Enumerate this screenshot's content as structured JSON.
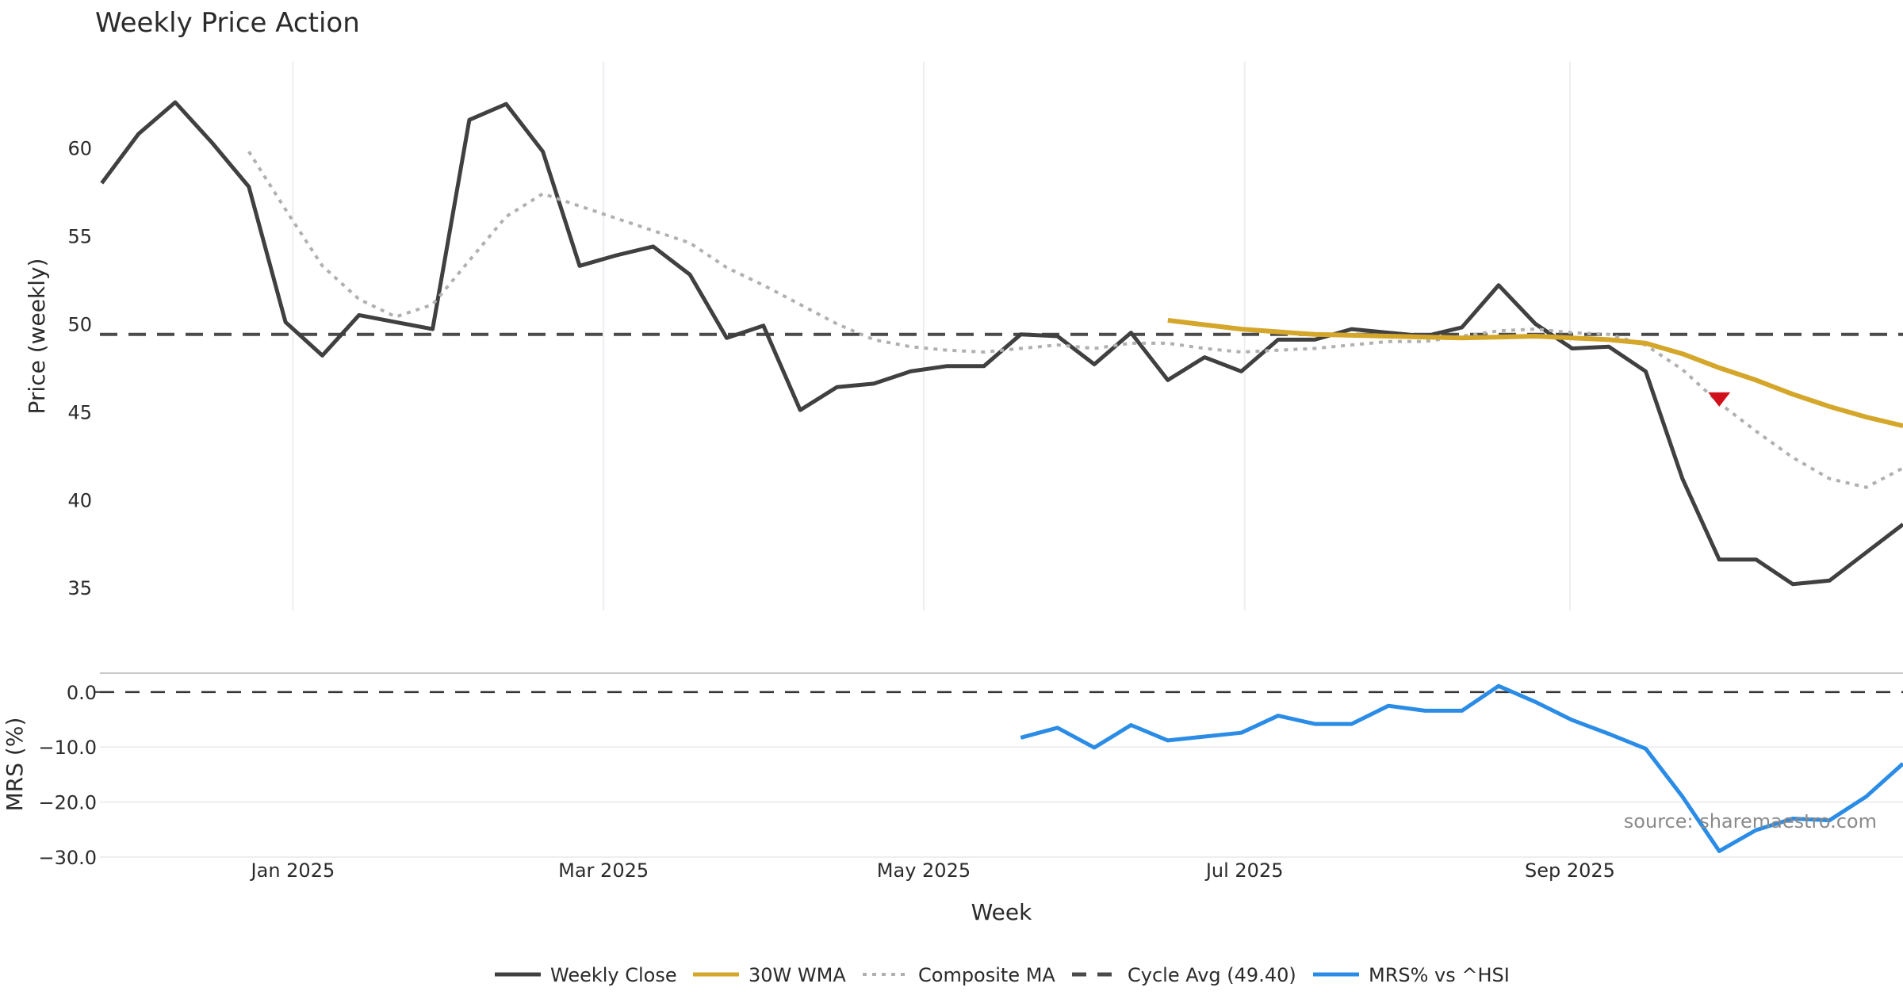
{
  "chart_data": {
    "type": "line",
    "title": "Weekly Price Action",
    "xlabel": "Week",
    "source": "source: sharemaestro.com",
    "x_ticks": [
      {
        "label": "Jan 2025",
        "index": 5.2
      },
      {
        "label": "Mar 2025",
        "index": 13.65
      },
      {
        "label": "May 2025",
        "index": 22.36
      },
      {
        "label": "Jul 2025",
        "index": 31.09
      },
      {
        "label": "Sep 2025",
        "index": 39.94
      }
    ],
    "x_range": [
      -0.05,
      49.0
    ],
    "price_panel": {
      "ylabel": "Price (weekly)",
      "ylim": [
        33.7,
        64.9
      ],
      "yticks": [
        {
          "value": 60,
          "label": "60"
        },
        {
          "value": 55,
          "label": "55"
        },
        {
          "value": 50,
          "label": "50"
        },
        {
          "value": 45,
          "label": "45"
        },
        {
          "value": 40,
          "label": "40"
        },
        {
          "value": 35,
          "label": "35"
        }
      ],
      "grid": "x",
      "series": [
        {
          "name": "Weekly Close",
          "color": "#404040",
          "style": "solid",
          "start_index": 0,
          "values": [
            58.0,
            60.8,
            62.6,
            60.3,
            57.8,
            50.1,
            48.2,
            50.5,
            50.1,
            49.7,
            61.6,
            62.5,
            59.8,
            53.3,
            53.9,
            54.4,
            52.8,
            49.2,
            49.9,
            45.1,
            46.4,
            46.6,
            47.3,
            47.6,
            47.6,
            49.4,
            49.3,
            47.7,
            49.5,
            46.8,
            48.1,
            47.3,
            49.1,
            49.1,
            49.7,
            49.5,
            49.3,
            49.8,
            52.2,
            50.0,
            48.6,
            48.7,
            47.3,
            41.2,
            36.6,
            36.6,
            35.2,
            35.4,
            37.0,
            38.6
          ]
        },
        {
          "name": "30W WMA",
          "color": "#d4a62a",
          "style": "solid",
          "start_index": 29,
          "values": [
            50.2,
            49.95,
            49.7,
            49.55,
            49.4,
            49.35,
            49.3,
            49.25,
            49.2,
            49.25,
            49.3,
            49.2,
            49.1,
            48.9,
            48.3,
            47.5,
            46.8,
            46.0,
            45.3,
            44.7,
            44.2
          ]
        },
        {
          "name": "Composite MA",
          "color": "#b0b0b0",
          "style": "dotted",
          "start_index": 4,
          "values": [
            59.8,
            56.5,
            53.3,
            51.4,
            50.4,
            51.1,
            53.6,
            56.1,
            57.4,
            56.7,
            56.0,
            55.3,
            54.6,
            53.2,
            52.2,
            51.1,
            50.0,
            49.1,
            48.7,
            48.5,
            48.4,
            48.6,
            48.8,
            48.6,
            48.9,
            48.9,
            48.6,
            48.4,
            48.5,
            48.6,
            48.8,
            49.0,
            49.0,
            49.3,
            49.6,
            49.7,
            49.5,
            49.4,
            48.8,
            47.4,
            45.5,
            43.9,
            42.4,
            41.2,
            40.7,
            41.8
          ]
        }
      ],
      "reference_line": {
        "name": "Cycle Avg (49.40)",
        "value": 49.4,
        "color": "#4a4a4a",
        "style": "dashed"
      },
      "markers": [
        {
          "name": "sell-signal",
          "index": 44,
          "value": 45.7,
          "shape": "triangle-down",
          "color": "#d0101a"
        }
      ]
    },
    "mrs_panel": {
      "ylabel": "MRS (%)",
      "ylim": [
        -31.0,
        3.0
      ],
      "yticks": [
        {
          "value": 0,
          "label": "0.0"
        },
        {
          "value": -10,
          "label": "−10.0"
        },
        {
          "value": -20,
          "label": "−20.0"
        },
        {
          "value": -30,
          "label": "−30.0"
        }
      ],
      "grid": "y",
      "zero_line": {
        "value": 0,
        "style": "dashed",
        "color": "#333333"
      },
      "series": [
        {
          "name": "MRS% vs ^HSI",
          "color": "#2b8ce6",
          "style": "solid",
          "start_index": 25,
          "values": [
            -8.3,
            -6.5,
            -10.1,
            -6.0,
            -8.8,
            -8.1,
            -7.4,
            -4.3,
            -5.8,
            -5.8,
            -2.5,
            -3.4,
            -3.4,
            1.1,
            -1.8,
            -5.1,
            -7.6,
            -10.3,
            -19.0,
            -28.9,
            -25.1,
            -23.0,
            -23.3,
            -19.0,
            -13.0
          ]
        }
      ]
    },
    "legend": {
      "placement": "bottom-center",
      "entries": [
        {
          "label": "Weekly Close",
          "color": "#404040",
          "style": "solid"
        },
        {
          "label": "30W WMA",
          "color": "#d4a62a",
          "style": "solid"
        },
        {
          "label": "Composite MA",
          "color": "#b0b0b0",
          "style": "dotted"
        },
        {
          "label": "Cycle Avg (49.40)",
          "color": "#4a4a4a",
          "style": "dashed"
        },
        {
          "label": "MRS% vs ^HSI",
          "color": "#2b8ce6",
          "style": "solid"
        }
      ]
    }
  }
}
